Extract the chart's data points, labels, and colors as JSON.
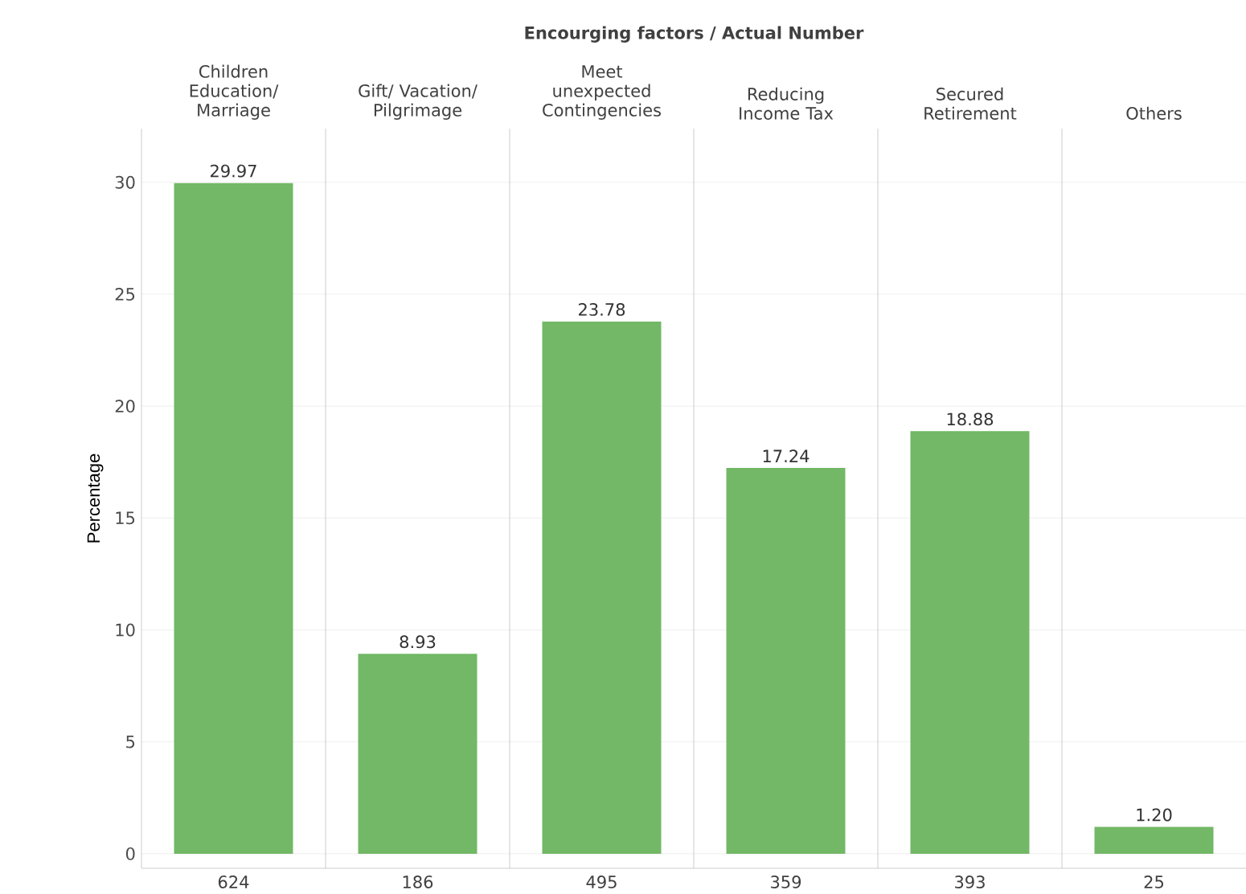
{
  "chart_data": {
    "type": "bar",
    "title": "Encourging factors / Actual Number",
    "categories": [
      "Children Education/ Marriage",
      "Gift/ Vacation/ Pilgrimage",
      "Meet unexpected Contingencies",
      "Reducing Income Tax",
      "Secured Retirement",
      "Others"
    ],
    "values": [
      29.97,
      8.93,
      23.78,
      17.24,
      18.88,
      1.2
    ],
    "value_labels": [
      "29.97",
      "8.93",
      "23.78",
      "17.24",
      "18.88",
      "1.20"
    ],
    "color": "#72b866",
    "ylabel": "Percentage",
    "ylim": [
      -0.65,
      32.4
    ],
    "yticks": [
      0,
      5,
      10,
      15,
      20,
      25,
      30
    ],
    "grid": "y",
    "annotations": [
      "624",
      "186",
      "495",
      "359",
      "393",
      "25"
    ]
  }
}
